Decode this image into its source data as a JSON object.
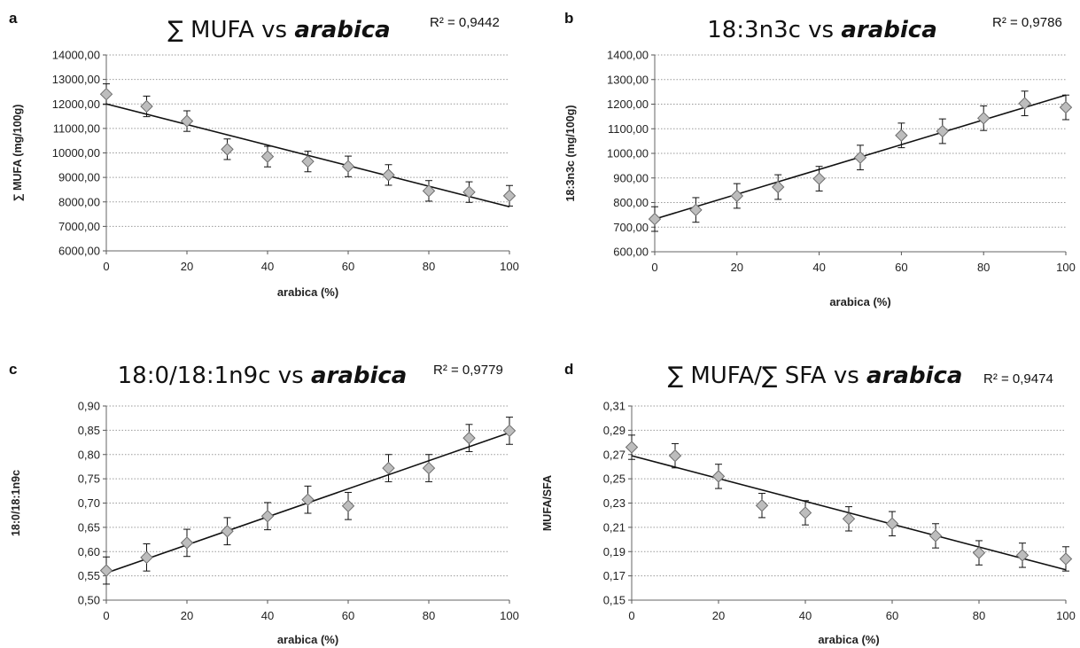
{
  "figure": {
    "panels": [
      {
        "letter": "a",
        "title_main": "∑ MUFA vs ",
        "title_italic": "arabica",
        "r2": "R² = 0,9442"
      },
      {
        "letter": "b",
        "title_main": "18:3n3c vs ",
        "title_italic": "arabica",
        "r2": "R² = 0,9786"
      },
      {
        "letter": "c",
        "title_main": "18:0/18:1n9c vs ",
        "title_italic": "arabica",
        "r2": "R² = 0,9779"
      },
      {
        "letter": "d",
        "title_main": "∑ MUFA/∑ SFA vs ",
        "title_italic": "arabica",
        "r2": "R² = 0,9474"
      }
    ]
  },
  "chart_data": [
    {
      "type": "scatter",
      "panel": "a",
      "title": "∑ MUFA vs arabica",
      "xlabel": "arabica (%)",
      "ylabel": "∑ MUFA (mg/100g)",
      "xlim": [
        0,
        100
      ],
      "ylim": [
        6000,
        14000
      ],
      "x_ticks": [
        "0",
        "20",
        "40",
        "60",
        "80",
        "100"
      ],
      "y_ticks": [
        "6000,00",
        "7000,00",
        "8000,00",
        "9000,00",
        "10000,00",
        "11000,00",
        "12000,00",
        "13000,00",
        "14000,00"
      ],
      "grid": "horizontal dotted",
      "x": [
        0,
        10,
        20,
        30,
        40,
        50,
        60,
        70,
        80,
        90,
        100
      ],
      "y": [
        12400,
        11900,
        11300,
        10150,
        9850,
        9650,
        9450,
        9100,
        8450,
        8400,
        8250
      ],
      "err": [
        420,
        420,
        420,
        420,
        420,
        420,
        420,
        420,
        420,
        420,
        420
      ],
      "trendline": {
        "y_start": 12000,
        "y_end": 7800
      },
      "r2": "R² = 0,9442"
    },
    {
      "type": "scatter",
      "panel": "b",
      "title": "18:3n3c vs arabica",
      "xlabel": "arabica (%)",
      "ylabel": "18:3n3c (mg/100g)",
      "xlim": [
        0,
        100
      ],
      "ylim": [
        600,
        1400
      ],
      "x_ticks": [
        "0",
        "20",
        "40",
        "60",
        "80",
        "100"
      ],
      "y_ticks": [
        "600,00",
        "700,00",
        "800,00",
        "900,00",
        "1000,00",
        "1100,00",
        "1200,00",
        "1300,00",
        "1400,00"
      ],
      "grid": "horizontal dotted",
      "x": [
        0,
        10,
        20,
        30,
        40,
        50,
        60,
        70,
        80,
        90,
        100
      ],
      "y": [
        733,
        770,
        827,
        863,
        897,
        983,
        1073,
        1090,
        1143,
        1203,
        1187
      ],
      "err": [
        50,
        50,
        50,
        50,
        50,
        50,
        50,
        50,
        50,
        50,
        50
      ],
      "trendline": {
        "y_start": 733,
        "y_end": 1237
      },
      "r2": "R² = 0,9786"
    },
    {
      "type": "scatter",
      "panel": "c",
      "title": "18:0/18:1n9c vs arabica",
      "xlabel": "arabica (%)",
      "ylabel": "18:0/18:1n9c",
      "xlim": [
        0,
        100
      ],
      "ylim": [
        0.5,
        0.9
      ],
      "x_ticks": [
        "0",
        "20",
        "40",
        "60",
        "80",
        "100"
      ],
      "y_ticks": [
        "0,50",
        "0,55",
        "0,60",
        "0,65",
        "0,70",
        "0,75",
        "0,80",
        "0,85",
        "0,90"
      ],
      "grid": "horizontal dotted",
      "x": [
        0,
        10,
        20,
        30,
        40,
        50,
        60,
        70,
        80,
        90,
        100
      ],
      "y": [
        0.561,
        0.588,
        0.618,
        0.642,
        0.673,
        0.707,
        0.694,
        0.772,
        0.772,
        0.834,
        0.849
      ],
      "err": [
        0.028,
        0.028,
        0.028,
        0.028,
        0.028,
        0.028,
        0.028,
        0.028,
        0.028,
        0.028,
        0.028
      ],
      "trendline": {
        "y_start": 0.556,
        "y_end": 0.845
      },
      "r2": "R² = 0,9779"
    },
    {
      "type": "scatter",
      "panel": "d",
      "title": "∑ MUFA/∑ SFA vs arabica",
      "xlabel": "arabica (%)",
      "ylabel": "MUFA/SFA",
      "xlim": [
        0,
        100
      ],
      "ylim": [
        0.15,
        0.31
      ],
      "x_ticks": [
        "0",
        "20",
        "40",
        "60",
        "80",
        "100"
      ],
      "y_ticks": [
        "0,15",
        "0,17",
        "0,19",
        "0,21",
        "0,23",
        "0,25",
        "0,27",
        "0,29",
        "0,31"
      ],
      "grid": "horizontal dotted",
      "x": [
        0,
        10,
        20,
        30,
        40,
        50,
        60,
        70,
        80,
        90,
        100
      ],
      "y": [
        0.276,
        0.269,
        0.252,
        0.228,
        0.222,
        0.217,
        0.213,
        0.203,
        0.189,
        0.187,
        0.184
      ],
      "err": [
        0.01,
        0.01,
        0.01,
        0.01,
        0.01,
        0.01,
        0.01,
        0.01,
        0.01,
        0.01,
        0.01
      ],
      "trendline": {
        "y_start": 0.269,
        "y_end": 0.175
      },
      "r2": "R² = 0,9474"
    }
  ]
}
